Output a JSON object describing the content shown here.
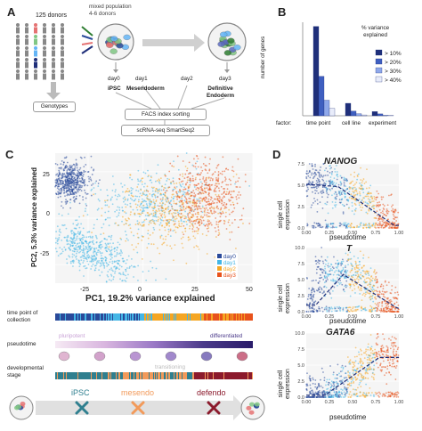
{
  "panels": {
    "a": "A",
    "b": "B",
    "c": "C",
    "d": "D"
  },
  "panelA": {
    "donors": "125 donors",
    "mixed": "mixed population\n4-6 donors",
    "genotypes": "Genotypes",
    "days": [
      "day0",
      "day1",
      "day2",
      "day3"
    ],
    "ipsc": "iPSC",
    "mesendoderm": "Mesendoderm",
    "definitive": "Definitive\nEndoderm",
    "facs": "FACS index sorting",
    "scrna": "scRNA-seq SmartSeq2"
  },
  "colors": {
    "day0": "#2a4a9a",
    "day1": "#44b6e6",
    "day2": "#f5a623",
    "day3": "#e8521c",
    "navy": "#1f2f7a"
  },
  "chart_data": [
    {
      "id": "B",
      "type": "bar",
      "ylabel": "number of genes",
      "xlabel": "factor:",
      "categories": [
        "time point",
        "cell line",
        "experiment"
      ],
      "legend_title": "% variance\nexplained",
      "series": [
        {
          "name": "> 10%",
          "values": [
            860,
            120,
            40
          ]
        },
        {
          "name": "> 20%",
          "values": [
            380,
            45,
            18
          ]
        },
        {
          "name": "> 30%",
          "values": [
            150,
            20,
            5
          ]
        },
        {
          "name": "> 40%",
          "values": [
            70,
            8,
            2
          ]
        }
      ],
      "ylim": [
        0,
        900
      ]
    },
    {
      "id": "C",
      "type": "scatter",
      "xlabel": "PC1, 19.2% variance explained",
      "ylabel": "PC2, 5.3% variance explained",
      "xticks": [
        "-25",
        "0",
        "25",
        "50"
      ],
      "yticks": [
        "25",
        "0",
        "-25"
      ],
      "xlim": [
        -40,
        50
      ],
      "ylim": [
        -35,
        35
      ],
      "legend": [
        "day0",
        "day1",
        "day2",
        "day3"
      ]
    },
    {
      "id": "D",
      "type": "scatter",
      "xlabel": "pseudotime",
      "ylabel": "single cell\nexpression",
      "subplots": [
        {
          "gene": "NANOG",
          "yticks": [
            "7.5",
            "5.0",
            "2.5",
            "0.0"
          ]
        },
        {
          "gene": "T",
          "yticks": [
            "10.0",
            "7.5",
            "5.0",
            "2.5",
            "0.0"
          ]
        },
        {
          "gene": "GATA6",
          "yticks": [
            "10.0",
            "7.5",
            "5.0",
            "2.5",
            "0.0"
          ]
        }
      ],
      "xticks": [
        "0.00",
        "0.25",
        "0.50",
        "0.75",
        "1.00"
      ]
    }
  ],
  "bars": {
    "time_point": "time point of\ncollection",
    "pseudotime": "pseudotime",
    "dev_stage": "developmental\nstage",
    "pluripotent": "pluripotent",
    "differentiated": "differentiated",
    "transitioning": "transitioning",
    "ipsc": "iPSC",
    "mesendo": "mesendo",
    "defendo": "defendo"
  }
}
